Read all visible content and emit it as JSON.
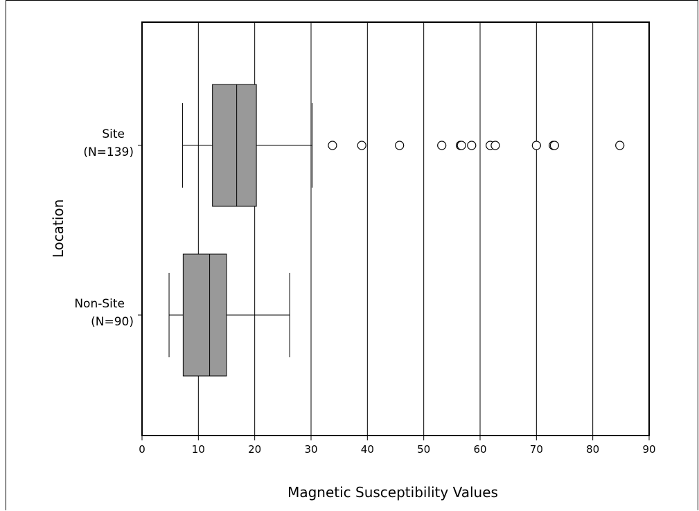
{
  "chart_data": {
    "type": "boxplot",
    "orientation": "horizontal",
    "xlabel": "Magnetic Susceptibility Values",
    "ylabel": "Location",
    "xlim": [
      0,
      90
    ],
    "xticks": [
      0,
      10,
      20,
      30,
      40,
      50,
      60,
      70,
      80,
      90
    ],
    "grid": "vertical",
    "box_color": "#999999",
    "categories": [
      {
        "label_line1": "Site",
        "label_line2": "(N=139)",
        "whisker_low": 7.2,
        "q1": 12.5,
        "median": 16.8,
        "q3": 20.3,
        "whisker_high": 30.2,
        "outliers": [
          33.8,
          39.0,
          45.7,
          53.2,
          56.5,
          56.7,
          58.5,
          61.8,
          62.7,
          70.0,
          73.0,
          73.2,
          84.8
        ]
      },
      {
        "label_line1": "Non-Site",
        "label_line2": "(N=90)",
        "whisker_low": 4.8,
        "q1": 7.3,
        "median": 12.0,
        "q3": 15.0,
        "whisker_high": 26.2,
        "outliers": []
      }
    ]
  }
}
